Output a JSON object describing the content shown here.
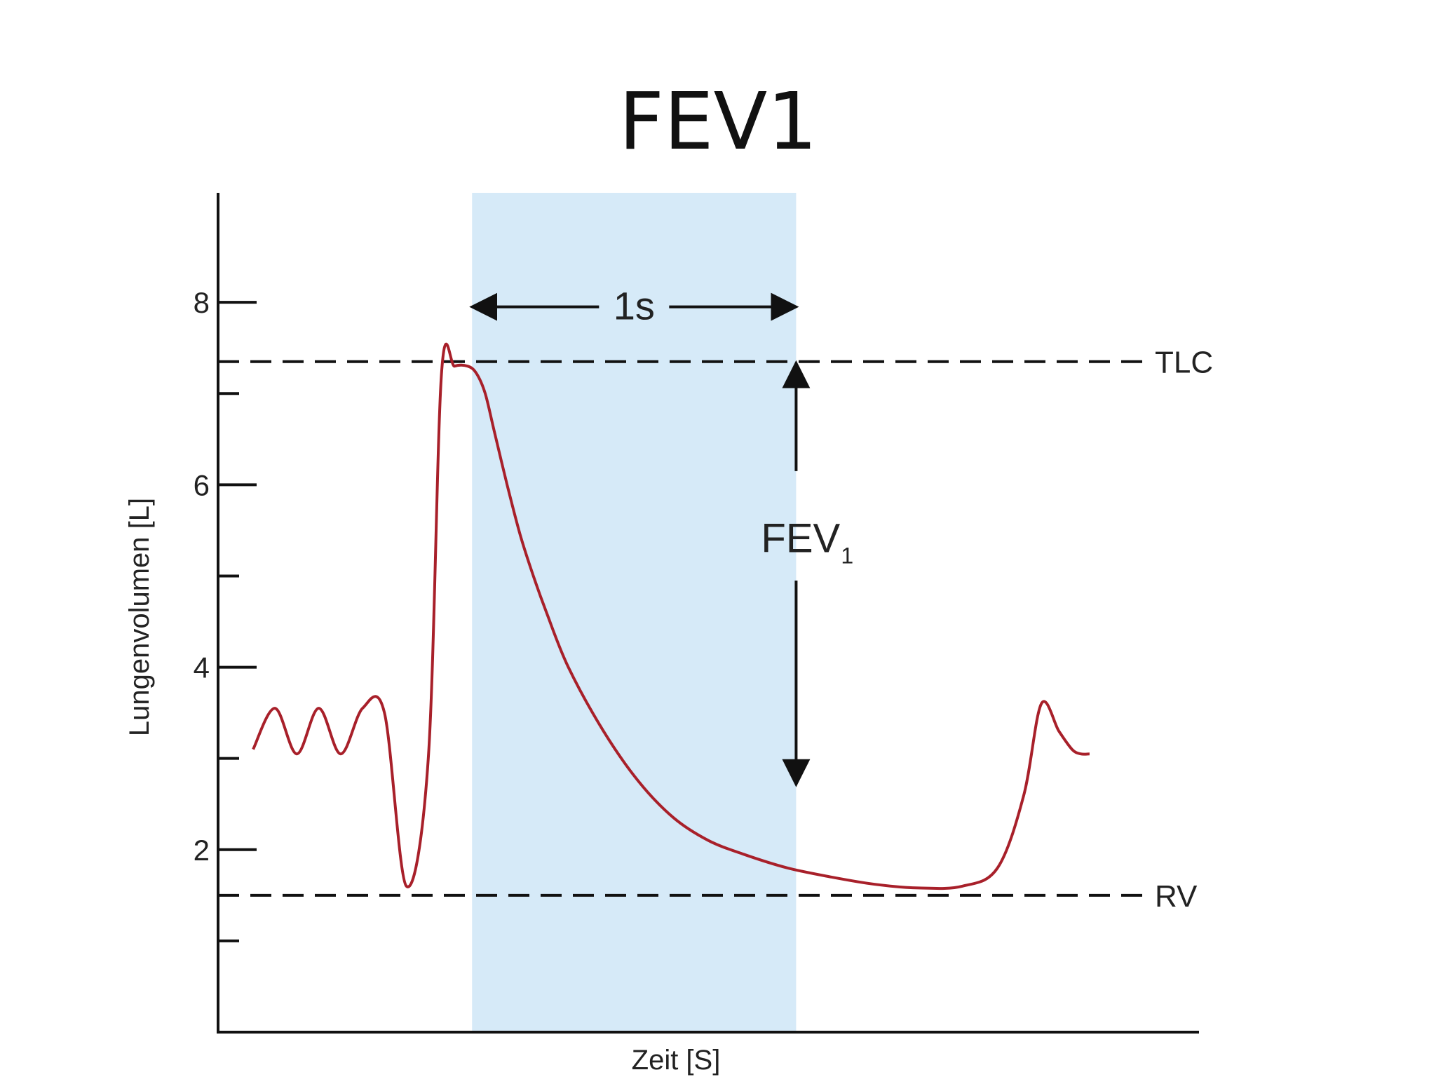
{
  "page": {
    "title": "FEV1"
  },
  "chart_data": {
    "type": "line",
    "title": "FEV1",
    "xlabel": "Zeit [S]",
    "ylabel": "Lungenvolumen [L]",
    "ylim": [
      0,
      9.2
    ],
    "xlim": [
      0,
      11.2
    ],
    "y_major_ticks": [
      2,
      4,
      6,
      8
    ],
    "y_minor_ticks": [
      1,
      3,
      5,
      7
    ],
    "series": [
      {
        "color": "#a8202a",
        "x": [
          0.4,
          0.65,
          0.9,
          1.15,
          1.4,
          1.65,
          1.9,
          2.15,
          2.4,
          2.55,
          2.7,
          2.85,
          2.95,
          3.05,
          3.15,
          3.3,
          3.45,
          3.6,
          3.75,
          4.0,
          4.4,
          4.8,
          5.2,
          5.6,
          6.0,
          6.5,
          7.0,
          7.5,
          8.0,
          8.5,
          8.9,
          9.2,
          9.4,
          9.6,
          9.75,
          9.85,
          9.95
        ],
        "y": [
          3.1,
          3.55,
          3.05,
          3.55,
          3.05,
          3.55,
          3.5,
          1.6,
          3.0,
          7.2,
          7.3,
          7.3,
          7.22,
          7.0,
          6.6,
          6.0,
          5.45,
          5.0,
          4.6,
          4.0,
          3.3,
          2.75,
          2.35,
          2.1,
          1.95,
          1.8,
          1.7,
          1.62,
          1.58,
          1.6,
          1.8,
          2.6,
          3.6,
          3.3,
          3.1,
          3.05,
          3.05
        ]
      }
    ],
    "reference_lines": [
      {
        "label": "TLC",
        "y": 7.35,
        "style": "dashed"
      },
      {
        "label": "RV",
        "y": 1.5,
        "style": "dashed"
      }
    ],
    "highlight_band": {
      "x": [
        2.9,
        6.6
      ],
      "color": "#d6eaf8"
    },
    "annotations": {
      "interval_label": "1s",
      "interval_x": [
        2.9,
        6.6
      ],
      "fev_label": "FEV",
      "fev_subscript": "1",
      "fev_arrow_x": 6.6,
      "fev_arrow_y": [
        7.35,
        2.7
      ]
    }
  }
}
